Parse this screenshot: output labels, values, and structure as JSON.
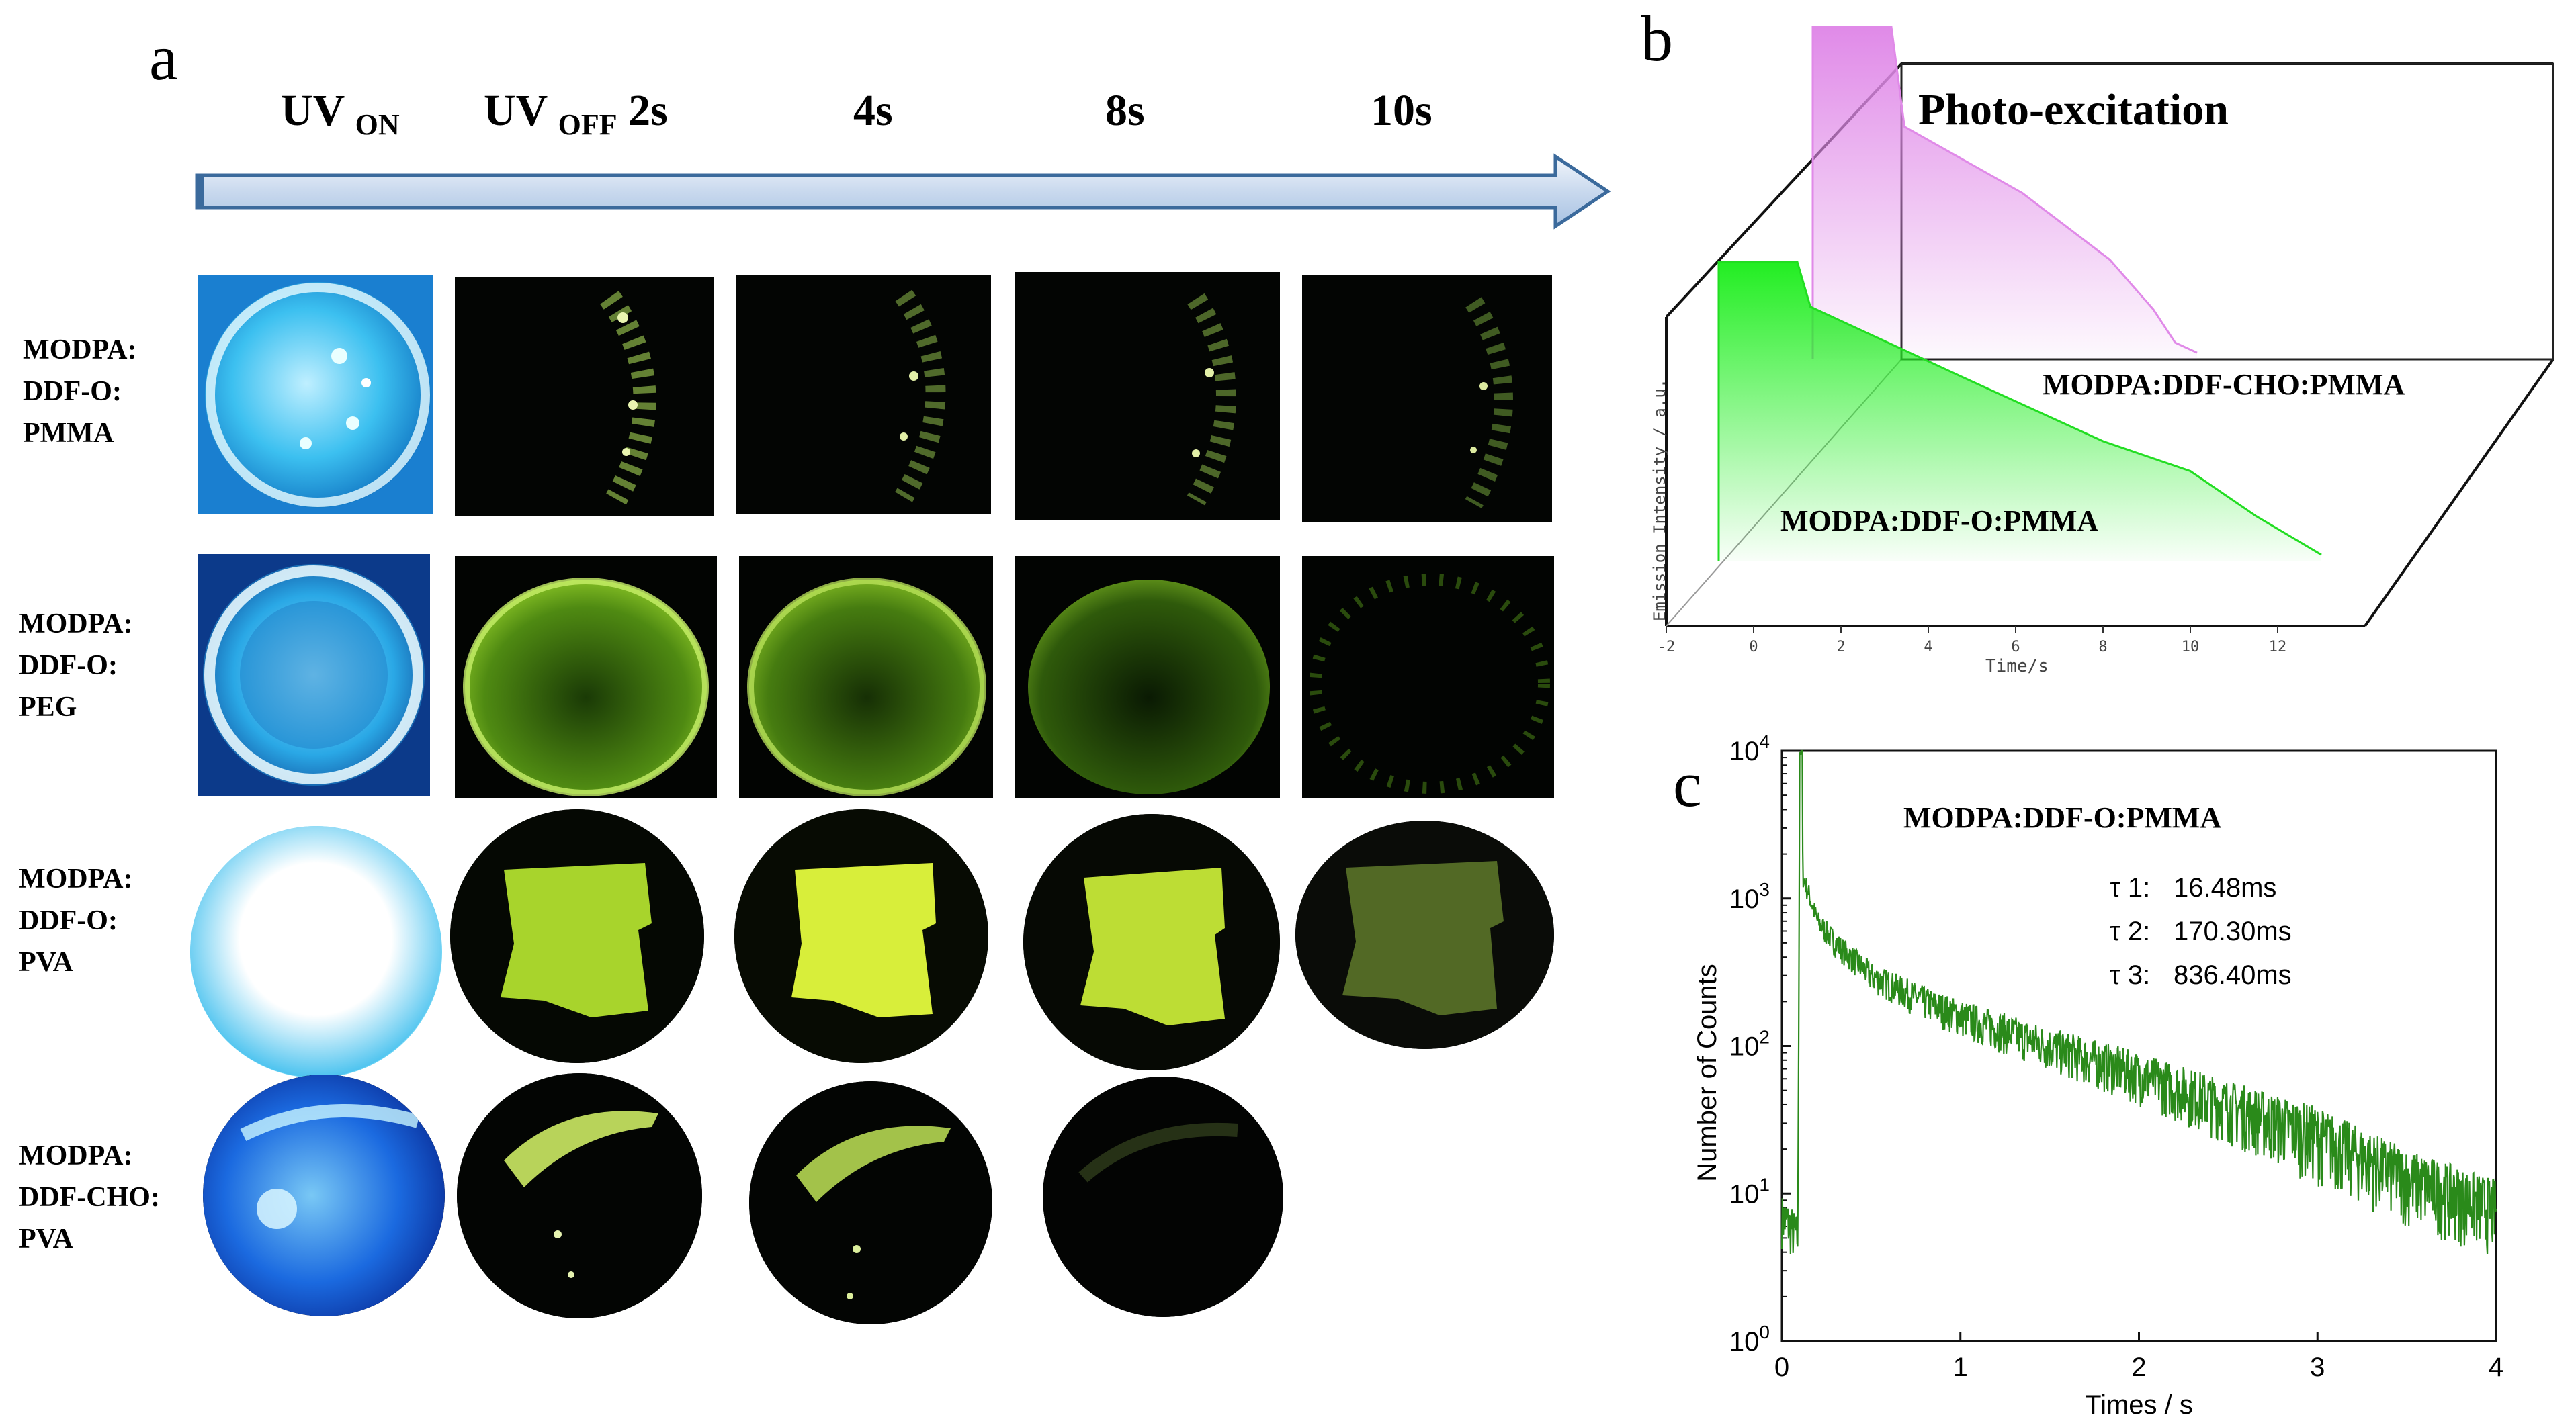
{
  "panel_a": {
    "letter": "a",
    "time_labels": [
      {
        "main": "UV",
        "sub": "ON",
        "tail": ""
      },
      {
        "main": "UV",
        "sub": "OFF",
        "tail": "2s"
      },
      {
        "main": "4s",
        "sub": "",
        "tail": ""
      },
      {
        "main": "8s",
        "sub": "",
        "tail": ""
      },
      {
        "main": "10s",
        "sub": "",
        "tail": ""
      }
    ],
    "rows": [
      {
        "label_lines": [
          "MODPA:",
          "DDF-O:",
          "PMMA"
        ]
      },
      {
        "label_lines": [
          "MODPA:",
          "DDF-O:",
          "PEG"
        ]
      },
      {
        "label_lines": [
          "MODPA:",
          "DDF-O:",
          "PVA"
        ]
      },
      {
        "label_lines": [
          "MODPA:",
          "DDF-CHO:",
          "PVA"
        ]
      }
    ]
  },
  "panel_b": {
    "letter": "b",
    "title": "Photo-excitation",
    "ylabel": "Emission Intensity / a.u.",
    "xlabel": "Time/s",
    "series": [
      {
        "name": "MODPA:DDF-CHO:PMMA",
        "color": "#e08ae8"
      },
      {
        "name": "MODPA:DDF-O:PMMA",
        "color": "#22dd22"
      }
    ]
  },
  "panel_c": {
    "letter": "c",
    "annotation_title": "MODPA:DDF-O:PMMA",
    "taus": [
      {
        "label": "τ 1:",
        "value": "16.48ms"
      },
      {
        "label": "τ 2:",
        "value": "170.30ms"
      },
      {
        "label": "τ 3:",
        "value": "836.40ms"
      }
    ]
  },
  "chart_data": [
    {
      "type": "line",
      "title": "Photo-excitation",
      "xlabel": "Time/s",
      "ylabel": "Emission Intensity / a.u.",
      "x_ticks": [
        "-2",
        "0",
        "2",
        "4",
        "6",
        "8",
        "10",
        "12"
      ],
      "series": [
        {
          "name": "MODPA:DDF-O:PMMA",
          "color": "#22dd22",
          "x": [
            -0.8,
            -0.8,
            1,
            1.3,
            5,
            8,
            10,
            11,
            11.5,
            13
          ],
          "y": [
            0,
            1.0,
            1.0,
            0.85,
            0.6,
            0.4,
            0.3,
            0.2,
            0.15,
            0.02
          ]
        },
        {
          "name": "MODPA:DDF-CHO:PMMA",
          "color": "#e08ae8",
          "x": [
            -0.8,
            -0.8,
            1,
            1.3,
            4,
            6,
            7,
            7.5,
            8
          ],
          "y": [
            0,
            1.0,
            1.0,
            0.7,
            0.5,
            0.3,
            0.15,
            0.05,
            0.02
          ]
        }
      ]
    },
    {
      "type": "line",
      "title": "",
      "xlabel": "Times / s",
      "ylabel": "Number of Counts",
      "yscale": "log",
      "xlim": [
        0,
        4
      ],
      "ylim": [
        1,
        10000
      ],
      "x_ticks": [
        "0",
        "1",
        "2",
        "3",
        "4"
      ],
      "y_ticks": [
        "10^0",
        "10^1",
        "10^2",
        "10^3",
        "10^4"
      ],
      "series": [
        {
          "name": "MODPA:DDF-O:PMMA",
          "color": "#2a8a1a",
          "x": [
            0.0,
            0.05,
            0.09,
            0.1,
            0.12,
            0.2,
            0.3,
            0.5,
            0.8,
            1.0,
            1.5,
            2.0,
            2.5,
            3.0,
            3.5,
            4.0
          ],
          "y": [
            7,
            6,
            5,
            10000,
            1400,
            700,
            500,
            300,
            200,
            160,
            100,
            65,
            40,
            25,
            13,
            8
          ]
        }
      ]
    }
  ]
}
